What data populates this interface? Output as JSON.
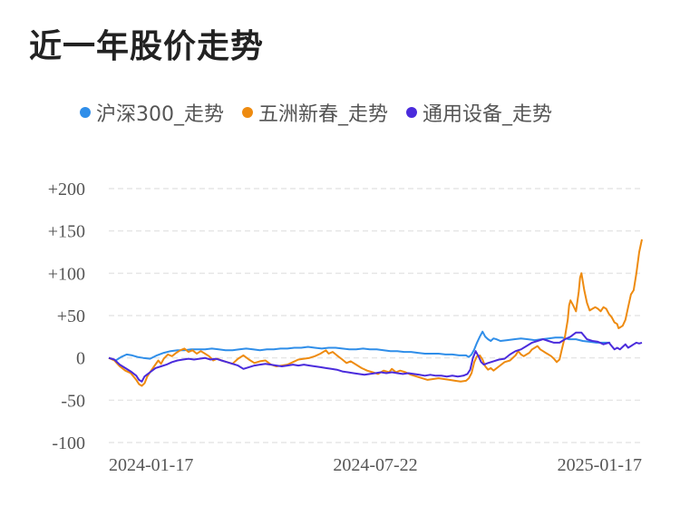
{
  "chart_data": {
    "type": "line",
    "title": "近一年股价走势",
    "xlabel": "",
    "ylabel": "",
    "x_ticks": [
      "2024-01-17",
      "2024-07-22",
      "2025-01-17"
    ],
    "y_ticks": [
      "+200",
      "+150",
      "+100",
      "+50",
      "0",
      "-50",
      "-100"
    ],
    "ylim": [
      -100,
      200
    ],
    "grid": true,
    "legend_position": "top",
    "series": [
      {
        "name": "沪深300_走势",
        "color": "#2f8ee9",
        "points": [
          [
            0,
            0
          ],
          [
            5,
            -3
          ],
          [
            9,
            1
          ],
          [
            13,
            4
          ],
          [
            17,
            3
          ],
          [
            21,
            1
          ],
          [
            25,
            0
          ],
          [
            30,
            -1
          ],
          [
            35,
            3
          ],
          [
            40,
            6
          ],
          [
            45,
            8
          ],
          [
            50,
            9
          ],
          [
            55,
            9
          ],
          [
            60,
            10
          ],
          [
            65,
            10
          ],
          [
            70,
            10
          ],
          [
            75,
            11
          ],
          [
            80,
            10
          ],
          [
            85,
            9
          ],
          [
            90,
            9
          ],
          [
            95,
            10
          ],
          [
            100,
            11
          ],
          [
            105,
            10
          ],
          [
            110,
            9
          ],
          [
            115,
            10
          ],
          [
            120,
            10
          ],
          [
            125,
            11
          ],
          [
            130,
            11
          ],
          [
            135,
            12
          ],
          [
            140,
            12
          ],
          [
            145,
            13
          ],
          [
            150,
            12
          ],
          [
            155,
            11
          ],
          [
            160,
            12
          ],
          [
            165,
            12
          ],
          [
            170,
            11
          ],
          [
            175,
            10
          ],
          [
            180,
            10
          ],
          [
            185,
            11
          ],
          [
            190,
            10
          ],
          [
            195,
            10
          ],
          [
            200,
            9
          ],
          [
            205,
            8
          ],
          [
            210,
            8
          ],
          [
            215,
            7
          ],
          [
            220,
            7
          ],
          [
            225,
            6
          ],
          [
            230,
            5
          ],
          [
            235,
            5
          ],
          [
            240,
            5
          ],
          [
            245,
            4
          ],
          [
            250,
            4
          ],
          [
            255,
            3
          ],
          [
            260,
            3
          ],
          [
            262,
            1
          ],
          [
            264,
            4
          ],
          [
            266,
            10
          ],
          [
            268,
            18
          ],
          [
            270,
            25
          ],
          [
            272,
            31
          ],
          [
            274,
            25
          ],
          [
            276,
            22
          ],
          [
            278,
            20
          ],
          [
            280,
            23
          ],
          [
            282,
            22
          ],
          [
            285,
            20
          ],
          [
            290,
            21
          ],
          [
            295,
            22
          ],
          [
            300,
            23
          ],
          [
            305,
            22
          ],
          [
            310,
            21
          ],
          [
            315,
            22
          ],
          [
            320,
            23
          ],
          [
            325,
            24
          ],
          [
            330,
            24
          ],
          [
            335,
            22
          ],
          [
            340,
            22
          ],
          [
            345,
            20
          ],
          [
            350,
            19
          ],
          [
            355,
            18
          ],
          [
            360,
            18
          ],
          [
            365,
            18
          ]
        ]
      },
      {
        "name": "五洲新春_走势",
        "color": "#ee8b10",
        "points": [
          [
            0,
            0
          ],
          [
            4,
            -3
          ],
          [
            8,
            -10
          ],
          [
            12,
            -15
          ],
          [
            16,
            -18
          ],
          [
            20,
            -26
          ],
          [
            22,
            -31
          ],
          [
            24,
            -33
          ],
          [
            26,
            -30
          ],
          [
            28,
            -22
          ],
          [
            30,
            -17
          ],
          [
            33,
            -10
          ],
          [
            36,
            -3
          ],
          [
            38,
            -7
          ],
          [
            40,
            -1
          ],
          [
            43,
            4
          ],
          [
            46,
            2
          ],
          [
            49,
            6
          ],
          [
            52,
            9
          ],
          [
            55,
            11
          ],
          [
            58,
            7
          ],
          [
            61,
            9
          ],
          [
            64,
            5
          ],
          [
            67,
            8
          ],
          [
            70,
            5
          ],
          [
            73,
            2
          ],
          [
            76,
            -3
          ],
          [
            79,
            -1
          ],
          [
            82,
            -3
          ],
          [
            86,
            -5
          ],
          [
            90,
            -7
          ],
          [
            94,
            -1
          ],
          [
            98,
            3
          ],
          [
            102,
            -2
          ],
          [
            106,
            -6
          ],
          [
            110,
            -4
          ],
          [
            114,
            -3
          ],
          [
            118,
            -8
          ],
          [
            122,
            -10
          ],
          [
            126,
            -9
          ],
          [
            130,
            -8
          ],
          [
            134,
            -5
          ],
          [
            138,
            -2
          ],
          [
            142,
            -1
          ],
          [
            146,
            0
          ],
          [
            150,
            2
          ],
          [
            154,
            5
          ],
          [
            158,
            9
          ],
          [
            160,
            5
          ],
          [
            163,
            7
          ],
          [
            166,
            3
          ],
          [
            170,
            -2
          ],
          [
            173,
            -6
          ],
          [
            176,
            -4
          ],
          [
            180,
            -8
          ],
          [
            184,
            -12
          ],
          [
            188,
            -15
          ],
          [
            192,
            -17
          ],
          [
            196,
            -19
          ],
          [
            200,
            -15
          ],
          [
            204,
            -17
          ],
          [
            206,
            -13
          ],
          [
            209,
            -17
          ],
          [
            212,
            -15
          ],
          [
            216,
            -17
          ],
          [
            220,
            -20
          ],
          [
            224,
            -22
          ],
          [
            228,
            -24
          ],
          [
            232,
            -26
          ],
          [
            236,
            -25
          ],
          [
            240,
            -24
          ],
          [
            244,
            -25
          ],
          [
            248,
            -26
          ],
          [
            252,
            -27
          ],
          [
            256,
            -28
          ],
          [
            260,
            -27
          ],
          [
            262,
            -24
          ],
          [
            264,
            -18
          ],
          [
            266,
            -5
          ],
          [
            268,
            2
          ],
          [
            270,
            3
          ],
          [
            272,
            -2
          ],
          [
            274,
            -10
          ],
          [
            276,
            -14
          ],
          [
            278,
            -12
          ],
          [
            280,
            -15
          ],
          [
            284,
            -10
          ],
          [
            288,
            -5
          ],
          [
            292,
            -3
          ],
          [
            296,
            3
          ],
          [
            298,
            8
          ],
          [
            300,
            4
          ],
          [
            302,
            2
          ],
          [
            304,
            4
          ],
          [
            306,
            6
          ],
          [
            308,
            10
          ],
          [
            310,
            12
          ],
          [
            312,
            14
          ],
          [
            314,
            10
          ],
          [
            316,
            8
          ],
          [
            318,
            6
          ],
          [
            320,
            4
          ],
          [
            322,
            2
          ],
          [
            324,
            -1
          ],
          [
            326,
            -5
          ],
          [
            328,
            -2
          ],
          [
            330,
            12
          ],
          [
            332,
            25
          ],
          [
            334,
            45
          ],
          [
            335,
            62
          ],
          [
            336,
            68
          ],
          [
            338,
            62
          ],
          [
            340,
            55
          ],
          [
            342,
            78
          ],
          [
            343,
            95
          ],
          [
            344,
            100
          ],
          [
            346,
            80
          ],
          [
            348,
            65
          ],
          [
            350,
            56
          ],
          [
            352,
            58
          ],
          [
            354,
            60
          ],
          [
            356,
            58
          ],
          [
            358,
            55
          ],
          [
            360,
            60
          ],
          [
            362,
            58
          ],
          [
            364,
            52
          ],
          [
            366,
            48
          ],
          [
            368,
            42
          ],
          [
            370,
            40
          ],
          [
            371,
            35
          ],
          [
            372,
            36
          ],
          [
            374,
            38
          ],
          [
            376,
            45
          ],
          [
            378,
            60
          ],
          [
            380,
            75
          ],
          [
            382,
            80
          ],
          [
            384,
            100
          ],
          [
            386,
            125
          ],
          [
            388,
            140
          ]
        ]
      },
      {
        "name": "通用设备_走势",
        "color": "#4a2bdc",
        "points": [
          [
            0,
            0
          ],
          [
            4,
            -2
          ],
          [
            8,
            -8
          ],
          [
            12,
            -12
          ],
          [
            16,
            -16
          ],
          [
            20,
            -21
          ],
          [
            22,
            -26
          ],
          [
            24,
            -28
          ],
          [
            26,
            -22
          ],
          [
            30,
            -17
          ],
          [
            34,
            -12
          ],
          [
            38,
            -10
          ],
          [
            42,
            -8
          ],
          [
            46,
            -5
          ],
          [
            50,
            -3
          ],
          [
            54,
            -2
          ],
          [
            58,
            -1
          ],
          [
            62,
            -2
          ],
          [
            66,
            -1
          ],
          [
            70,
            0
          ],
          [
            74,
            -2
          ],
          [
            78,
            -1
          ],
          [
            82,
            -3
          ],
          [
            86,
            -5
          ],
          [
            90,
            -7
          ],
          [
            94,
            -9
          ],
          [
            98,
            -13
          ],
          [
            102,
            -11
          ],
          [
            106,
            -9
          ],
          [
            110,
            -8
          ],
          [
            114,
            -7
          ],
          [
            118,
            -8
          ],
          [
            122,
            -9
          ],
          [
            126,
            -10
          ],
          [
            130,
            -9
          ],
          [
            134,
            -8
          ],
          [
            138,
            -9
          ],
          [
            142,
            -8
          ],
          [
            146,
            -9
          ],
          [
            150,
            -10
          ],
          [
            154,
            -11
          ],
          [
            158,
            -12
          ],
          [
            162,
            -13
          ],
          [
            166,
            -14
          ],
          [
            170,
            -16
          ],
          [
            174,
            -17
          ],
          [
            178,
            -18
          ],
          [
            182,
            -19
          ],
          [
            186,
            -20
          ],
          [
            190,
            -19
          ],
          [
            194,
            -18
          ],
          [
            198,
            -17
          ],
          [
            202,
            -18
          ],
          [
            206,
            -17
          ],
          [
            210,
            -18
          ],
          [
            214,
            -19
          ],
          [
            218,
            -18
          ],
          [
            222,
            -19
          ],
          [
            226,
            -20
          ],
          [
            230,
            -21
          ],
          [
            234,
            -20
          ],
          [
            238,
            -21
          ],
          [
            242,
            -21
          ],
          [
            246,
            -22
          ],
          [
            250,
            -21
          ],
          [
            254,
            -22
          ],
          [
            258,
            -21
          ],
          [
            261,
            -19
          ],
          [
            263,
            -14
          ],
          [
            265,
            0
          ],
          [
            267,
            8
          ],
          [
            269,
            2
          ],
          [
            271,
            -5
          ],
          [
            273,
            -8
          ],
          [
            276,
            -6
          ],
          [
            280,
            -4
          ],
          [
            284,
            -2
          ],
          [
            288,
            -1
          ],
          [
            292,
            4
          ],
          [
            296,
            8
          ],
          [
            300,
            10
          ],
          [
            304,
            14
          ],
          [
            308,
            18
          ],
          [
            312,
            20
          ],
          [
            316,
            22
          ],
          [
            320,
            20
          ],
          [
            324,
            18
          ],
          [
            328,
            18
          ],
          [
            332,
            22
          ],
          [
            336,
            25
          ],
          [
            340,
            30
          ],
          [
            344,
            30
          ],
          [
            348,
            22
          ],
          [
            352,
            20
          ],
          [
            356,
            19
          ],
          [
            360,
            16
          ],
          [
            364,
            18
          ],
          [
            368,
            10
          ],
          [
            370,
            12
          ],
          [
            372,
            10
          ],
          [
            374,
            13
          ],
          [
            376,
            16
          ],
          [
            378,
            12
          ],
          [
            380,
            14
          ],
          [
            382,
            16
          ],
          [
            384,
            18
          ],
          [
            386,
            17
          ],
          [
            388,
            18
          ]
        ]
      }
    ]
  }
}
